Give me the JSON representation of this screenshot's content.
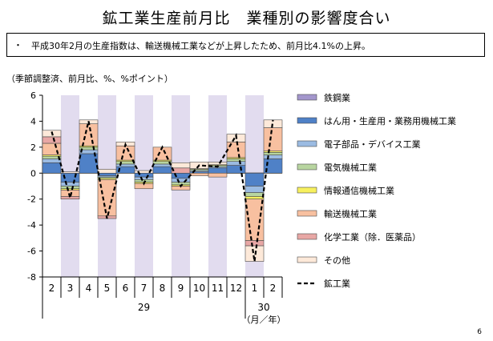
{
  "title": "鉱工業生産前月比　業種別の影響度合い",
  "note": {
    "bullet": "・",
    "text": "平成30年2月の生産指数は、輸送機械工業などが上昇したため、前月比4.1%の上昇。"
  },
  "unit_label": "（季節調整済、前月比、%、%ポイント）",
  "page_number": "6",
  "chart_data": {
    "type": "bar",
    "stacked": true,
    "ylim": [
      -8,
      6
    ],
    "yticks": [
      -8,
      -6,
      -4,
      -2,
      0,
      2,
      4,
      6
    ],
    "categories": [
      "2",
      "3",
      "4",
      "5",
      "6",
      "7",
      "8",
      "9",
      "10",
      "11",
      "12",
      "1",
      "2"
    ],
    "year_groups": [
      {
        "label": "29",
        "start": 0,
        "end": 10
      },
      {
        "label": "30",
        "start": 11,
        "end": 12
      }
    ],
    "xlabel": "（月／年）",
    "shaded_categories": [
      1,
      3,
      5,
      7,
      9,
      11
    ],
    "shade_color": "#e2dcef",
    "series": [
      {
        "name": "鉄鋼業",
        "color": "#a396cc",
        "values": [
          0.0,
          0.0,
          0.0,
          0.0,
          0.0,
          0.0,
          0.0,
          0.0,
          0.0,
          0.0,
          0.0,
          0.0,
          0.0
        ]
      },
      {
        "name": "はん用・生産用・業務用機械工業",
        "color": "#4f81c7",
        "values": [
          0.8,
          -0.7,
          1.5,
          -0.2,
          0.5,
          -0.3,
          0.5,
          -0.4,
          0.1,
          0.4,
          0.6,
          -1.0,
          1.1
        ]
      },
      {
        "name": "電子部品・デバイス工業",
        "color": "#9bbbe2",
        "values": [
          0.3,
          -0.3,
          0.3,
          -0.1,
          0.2,
          -0.2,
          0.2,
          -0.3,
          0.1,
          0.1,
          0.3,
          -0.5,
          0.3
        ]
      },
      {
        "name": "電気機械工業",
        "color": "#b8d5a0",
        "values": [
          0.2,
          -0.2,
          0.2,
          -0.1,
          0.2,
          -0.2,
          0.2,
          -0.2,
          0.1,
          0.1,
          0.2,
          -0.3,
          0.2
        ]
      },
      {
        "name": "情報通信機械工業",
        "color": "#f7f05e",
        "values": [
          0.1,
          -0.1,
          0.1,
          -0.1,
          0.1,
          -0.1,
          0.1,
          -0.1,
          0.05,
          0.05,
          0.1,
          -0.2,
          0.1
        ]
      },
      {
        "name": "輸送機械工業",
        "color": "#f8c0a0",
        "values": [
          0.9,
          -0.5,
          1.7,
          -2.8,
          1.1,
          -0.4,
          1.0,
          -0.3,
          -0.2,
          -0.3,
          1.2,
          -3.2,
          1.8
        ]
      },
      {
        "name": "化学工業（除．医薬品）",
        "color": "#e8a7a5",
        "values": [
          0.5,
          -0.2,
          0.0,
          -0.2,
          0.0,
          0.0,
          0.0,
          0.4,
          0.0,
          0.0,
          0.0,
          -0.4,
          0.0
        ]
      },
      {
        "name": "その他",
        "color": "#fde9d9",
        "values": [
          0.5,
          0.1,
          0.3,
          0.3,
          0.3,
          0.2,
          0.0,
          0.4,
          0.5,
          0.2,
          0.6,
          -1.2,
          0.6
        ]
      }
    ],
    "line": {
      "name": "鉱工業",
      "values": [
        3.2,
        -1.9,
        4.0,
        -3.5,
        2.2,
        -0.8,
        2.0,
        -1.0,
        0.6,
        0.5,
        2.9,
        -6.8,
        4.1
      ]
    }
  }
}
